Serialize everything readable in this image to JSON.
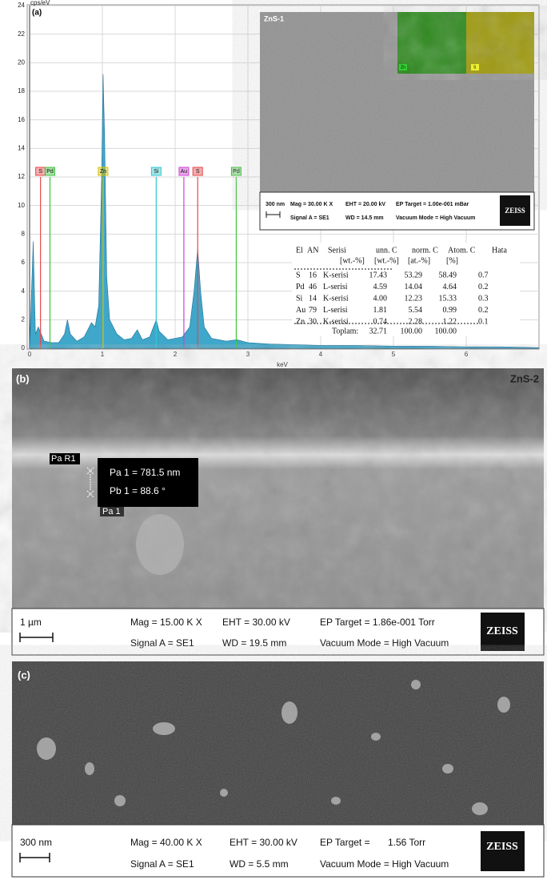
{
  "chart_data": {
    "type": "area",
    "panel_label": "(a)",
    "y_label": "cps/eV",
    "x_label": "keV",
    "xlim": [
      0,
      7
    ],
    "xticks": [
      0,
      1,
      2,
      3,
      4,
      5,
      6
    ],
    "ylim": [
      0,
      24
    ],
    "yticks": [
      0,
      2,
      4,
      6,
      8,
      10,
      12,
      14,
      16,
      18,
      20,
      22,
      24
    ],
    "grid": true,
    "color": "#3fa7c9",
    "x": [
      0,
      0.05,
      0.08,
      0.12,
      0.2,
      0.3,
      0.4,
      0.48,
      0.52,
      0.56,
      0.65,
      0.75,
      0.85,
      0.9,
      0.95,
      0.99,
      1.01,
      1.03,
      1.06,
      1.1,
      1.2,
      1.3,
      1.4,
      1.48,
      1.55,
      1.65,
      1.74,
      1.78,
      1.9,
      2.0,
      2.1,
      2.2,
      2.26,
      2.31,
      2.35,
      2.4,
      2.5,
      2.7,
      2.85,
      3.0,
      3.3,
      3.7,
      4.0,
      4.5,
      5.0,
      5.5,
      6.0,
      6.5,
      7.0
    ],
    "values": [
      0,
      7.5,
      1,
      1.5,
      0.5,
      0.4,
      0.4,
      1,
      2,
      1,
      0.5,
      0.8,
      1.8,
      1.5,
      3,
      12,
      19.2,
      15,
      5,
      2,
      1,
      0.6,
      0.7,
      1.3,
      0.6,
      0.8,
      2,
      1.2,
      0.6,
      0.7,
      0.8,
      1.5,
      4,
      7,
      4,
      1.5,
      0.7,
      0.5,
      0.6,
      0.4,
      0.3,
      0.25,
      0.2,
      0.2,
      0.15,
      0.15,
      0.1,
      0.1,
      0.05
    ],
    "markers": [
      {
        "label": "S",
        "x": 0.15,
        "y": 12,
        "color": "#e8474a"
      },
      {
        "label": "Pd",
        "x": 0.28,
        "y": 12,
        "color": "#3cc43c"
      },
      {
        "label": "Zn",
        "x": 1.01,
        "y": 12,
        "color": "#d8c000"
      },
      {
        "label": "Si",
        "x": 1.74,
        "y": 12,
        "color": "#30c8d0"
      },
      {
        "label": "Au",
        "x": 2.12,
        "y": 12,
        "color": "#d040d8"
      },
      {
        "label": "S",
        "x": 2.31,
        "y": 12,
        "color": "#e8474a"
      },
      {
        "label": "Pd",
        "x": 2.84,
        "y": 12,
        "color": "#3cc43c"
      }
    ]
  },
  "eds_table": {
    "header": [
      "El",
      "AN",
      "Serisi",
      "unn. C",
      "norm. C",
      "Atom. C",
      "Hata"
    ],
    "units": [
      "[wt.-%]",
      "[wt.-%]",
      "[at.-%]",
      "[%]"
    ],
    "rows": [
      [
        "S",
        "16",
        "K-serisi",
        "17.43",
        "53.29",
        "58.49",
        "0.7"
      ],
      [
        "Pd",
        "46",
        "L-serisi",
        "4.59",
        "14.04",
        "4.64",
        "0.2"
      ],
      [
        "Si",
        "14",
        "K-serisi",
        "4.00",
        "12.23",
        "15.33",
        "0.3"
      ],
      [
        "Au",
        "79",
        "L-serisi",
        "1.81",
        "5.54",
        "0.99",
        "0.2"
      ],
      [
        "Zn",
        "30",
        "K-serisi",
        "0.74",
        "2.28",
        "1.22",
        "0.1"
      ]
    ],
    "total": [
      "Toplam:",
      "32.71",
      "100.00",
      "100.00"
    ]
  },
  "inset_a": {
    "title": "ZnS-1",
    "maps": [
      "Zn",
      "S"
    ],
    "info": {
      "scale": "300 nm",
      "mag": "Mag = 30.00 K X",
      "eht": "EHT = 20.00 kV",
      "target": "EP Target = 1.00e-001 mBar",
      "signal": "Signal A = SE1",
      "wd": "WD = 14.5 mm",
      "vacuum": "Vacuum Mode = High Vacuum",
      "logo": "ZEISS"
    }
  },
  "panel_b": {
    "label": "(b)",
    "title": "ZnS-2",
    "ref": "Pa R1",
    "measure_1": "Pa 1 = 781.5 nm",
    "measure_2": "Pb 1 = 88.6 °",
    "point": "Pa 1",
    "info": {
      "scale": "1 µm",
      "mag": "Mag = 15.00 K X",
      "eht": "EHT = 30.00 kV",
      "target": "EP Target = 1.86e-001 Torr",
      "signal": "Signal A = SE1",
      "wd": "WD = 19.5 mm",
      "vacuum": "Vacuum Mode = High Vacuum",
      "logo": "ZEISS"
    }
  },
  "panel_c": {
    "label": "(c)",
    "info": {
      "scale": "300 nm",
      "mag": "Mag = 40.00 K X",
      "eht": "EHT = 30.00 kV",
      "target": "EP Target =",
      "target_value": "1.56 Torr",
      "signal": "Signal A = SE1",
      "wd": "WD = 5.5 mm",
      "vacuum": "Vacuum Mode = High Vacuum",
      "logo": "ZEISS"
    }
  }
}
